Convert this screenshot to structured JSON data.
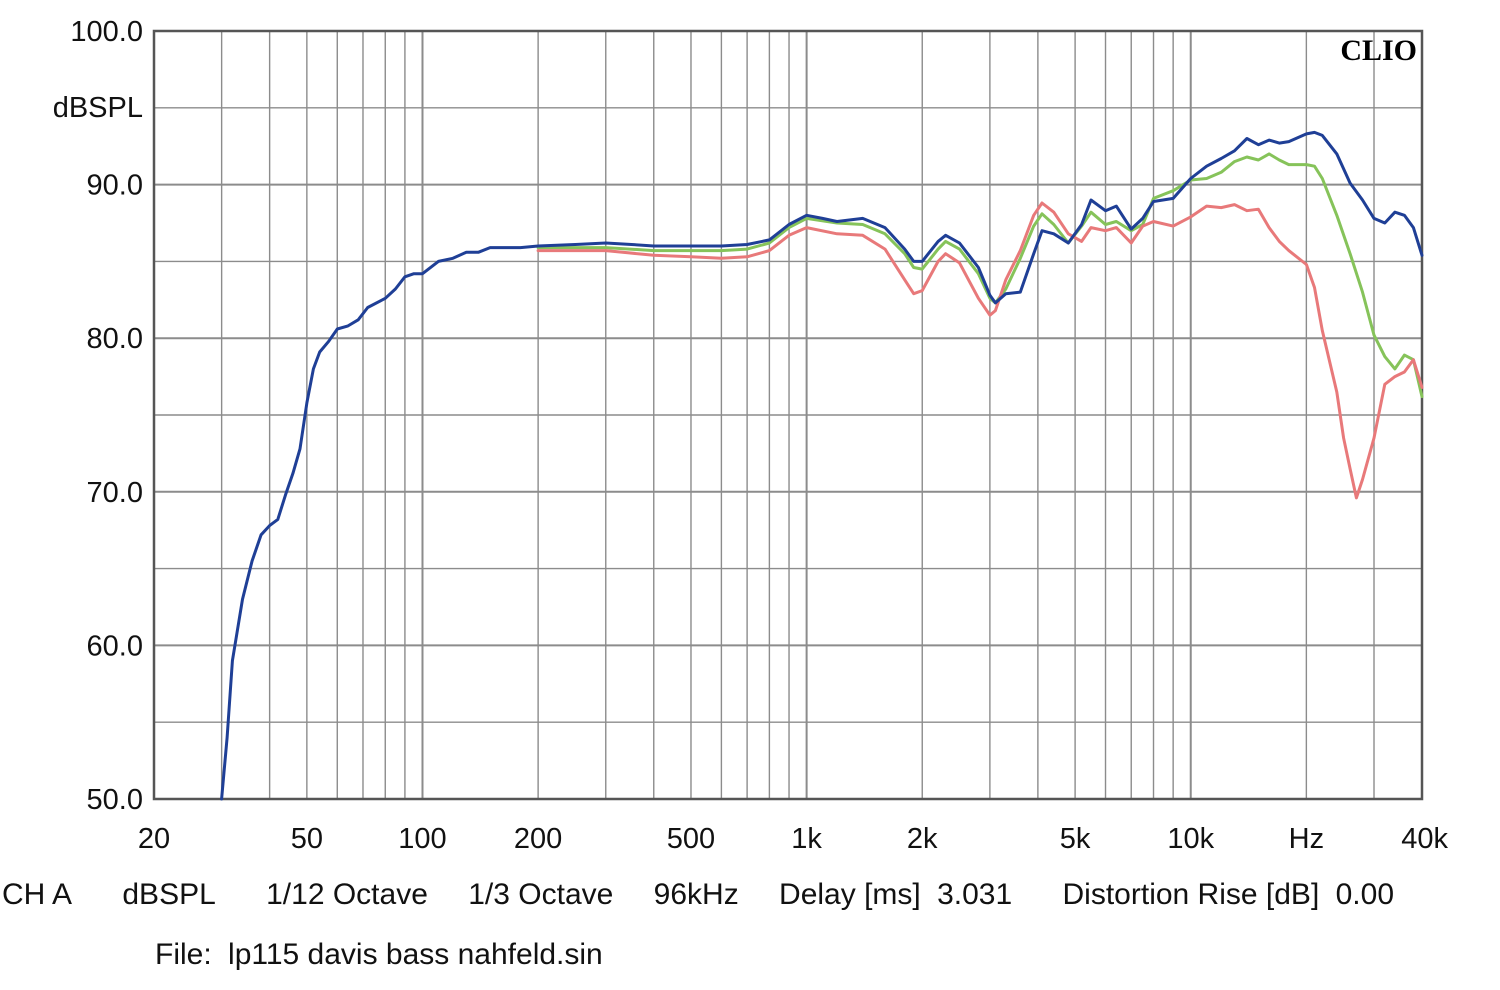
{
  "footer": {
    "channel": "CH A",
    "unit": "dBSPL",
    "resolution": "1/12 Octave",
    "smoothing": "1/3 Octave",
    "sample_rate": "96kHz",
    "delay_label": "Delay [ms]",
    "delay_value": "3.031",
    "distortion_label": "Distortion Rise [dB]",
    "distortion_value": "0.00",
    "file_label": "File:",
    "file_name": "lp115 davis bass nahfeld.sin"
  },
  "colors": {
    "background": "#ffffff",
    "grid": "#8c8c8c",
    "frame": "#555555",
    "blue": "#1f3f96",
    "green": "#86c35a",
    "red": "#e8797a"
  },
  "chart_data": {
    "type": "line",
    "brand": "CLIO",
    "ylabel": "dBSPL",
    "xlabel": "Hz",
    "xscale": "log",
    "xlim": [
      20,
      40000
    ],
    "ylim": [
      50,
      100
    ],
    "y_ticks": [
      {
        "value": 100,
        "label": "100.0"
      },
      {
        "value": 90,
        "label": "90.0"
      },
      {
        "value": 80,
        "label": "80.0"
      },
      {
        "value": 70,
        "label": "70.0"
      },
      {
        "value": 60,
        "label": "60.0"
      },
      {
        "value": 50,
        "label": "50.0"
      }
    ],
    "x_ticks": [
      {
        "value": 20,
        "label": "20"
      },
      {
        "value": 50,
        "label": "50"
      },
      {
        "value": 100,
        "label": "100"
      },
      {
        "value": 200,
        "label": "200"
      },
      {
        "value": 500,
        "label": "500"
      },
      {
        "value": 1000,
        "label": "1k"
      },
      {
        "value": 2000,
        "label": "2k"
      },
      {
        "value": 5000,
        "label": "5k"
      },
      {
        "value": 10000,
        "label": "10k"
      },
      {
        "value": 20000,
        "label": "Hz"
      },
      {
        "value": 40000,
        "label": "40k"
      }
    ],
    "grid": true,
    "series": [
      {
        "color": "#86c35a",
        "points": [
          [
            200,
            85.9
          ],
          [
            300,
            85.9
          ],
          [
            400,
            85.7
          ],
          [
            500,
            85.7
          ],
          [
            600,
            85.7
          ],
          [
            700,
            85.8
          ],
          [
            800,
            86.2
          ],
          [
            900,
            87.2
          ],
          [
            1000,
            87.8
          ],
          [
            1200,
            87.5
          ],
          [
            1400,
            87.4
          ],
          [
            1600,
            86.8
          ],
          [
            1800,
            85.5
          ],
          [
            1900,
            84.6
          ],
          [
            2000,
            84.5
          ],
          [
            2200,
            85.8
          ],
          [
            2300,
            86.3
          ],
          [
            2500,
            85.8
          ],
          [
            2800,
            84.2
          ],
          [
            3000,
            82.6
          ],
          [
            3100,
            82.3
          ],
          [
            3300,
            83.2
          ],
          [
            3600,
            85.2
          ],
          [
            3900,
            87.3
          ],
          [
            4100,
            88.1
          ],
          [
            4400,
            87.4
          ],
          [
            4800,
            86.2
          ],
          [
            5200,
            87.3
          ],
          [
            5500,
            88.2
          ],
          [
            6000,
            87.4
          ],
          [
            6400,
            87.6
          ],
          [
            7000,
            87.0
          ],
          [
            7500,
            87.4
          ],
          [
            8000,
            89.1
          ],
          [
            9000,
            89.6
          ],
          [
            10000,
            90.3
          ],
          [
            11000,
            90.4
          ],
          [
            12000,
            90.8
          ],
          [
            13000,
            91.5
          ],
          [
            14000,
            91.8
          ],
          [
            15000,
            91.6
          ],
          [
            16000,
            92.0
          ],
          [
            17000,
            91.6
          ],
          [
            18000,
            91.3
          ],
          [
            20000,
            91.3
          ],
          [
            21000,
            91.2
          ],
          [
            22000,
            90.4
          ],
          [
            24000,
            88.0
          ],
          [
            26000,
            85.5
          ],
          [
            28000,
            83.0
          ],
          [
            30000,
            80.2
          ],
          [
            32000,
            78.8
          ],
          [
            34000,
            78.0
          ],
          [
            36000,
            78.9
          ],
          [
            38000,
            78.6
          ],
          [
            40000,
            76.2
          ]
        ]
      },
      {
        "color": "#e8797a",
        "points": [
          [
            200,
            85.7
          ],
          [
            300,
            85.7
          ],
          [
            400,
            85.4
          ],
          [
            500,
            85.3
          ],
          [
            600,
            85.2
          ],
          [
            700,
            85.3
          ],
          [
            800,
            85.7
          ],
          [
            900,
            86.7
          ],
          [
            1000,
            87.2
          ],
          [
            1200,
            86.8
          ],
          [
            1400,
            86.7
          ],
          [
            1600,
            85.8
          ],
          [
            1800,
            83.8
          ],
          [
            1900,
            82.9
          ],
          [
            2000,
            83.1
          ],
          [
            2200,
            85.0
          ],
          [
            2300,
            85.5
          ],
          [
            2500,
            84.9
          ],
          [
            2800,
            82.6
          ],
          [
            3000,
            81.5
          ],
          [
            3100,
            81.8
          ],
          [
            3300,
            83.8
          ],
          [
            3600,
            85.7
          ],
          [
            3900,
            88.0
          ],
          [
            4100,
            88.8
          ],
          [
            4400,
            88.2
          ],
          [
            4800,
            86.8
          ],
          [
            5200,
            86.3
          ],
          [
            5500,
            87.2
          ],
          [
            6000,
            87.0
          ],
          [
            6400,
            87.2
          ],
          [
            7000,
            86.2
          ],
          [
            7500,
            87.3
          ],
          [
            8000,
            87.6
          ],
          [
            9000,
            87.3
          ],
          [
            10000,
            87.9
          ],
          [
            11000,
            88.6
          ],
          [
            12000,
            88.5
          ],
          [
            13000,
            88.7
          ],
          [
            14000,
            88.3
          ],
          [
            15000,
            88.4
          ],
          [
            16000,
            87.2
          ],
          [
            17000,
            86.3
          ],
          [
            18000,
            85.7
          ],
          [
            20000,
            84.8
          ],
          [
            21000,
            83.3
          ],
          [
            22000,
            80.5
          ],
          [
            24000,
            76.5
          ],
          [
            25000,
            73.5
          ],
          [
            26000,
            71.5
          ],
          [
            27000,
            69.6
          ],
          [
            28000,
            70.8
          ],
          [
            30000,
            73.5
          ],
          [
            32000,
            77.0
          ],
          [
            34000,
            77.5
          ],
          [
            36000,
            77.8
          ],
          [
            38000,
            78.6
          ],
          [
            40000,
            76.8
          ]
        ]
      },
      {
        "color": "#1f3f96",
        "points": [
          [
            30,
            50.0
          ],
          [
            31,
            54.0
          ],
          [
            32,
            59.0
          ],
          [
            34,
            63.0
          ],
          [
            36,
            65.5
          ],
          [
            38,
            67.2
          ],
          [
            40,
            67.8
          ],
          [
            42,
            68.2
          ],
          [
            44,
            69.8
          ],
          [
            46,
            71.2
          ],
          [
            48,
            72.8
          ],
          [
            50,
            75.8
          ],
          [
            52,
            78.0
          ],
          [
            54,
            79.1
          ],
          [
            57,
            79.8
          ],
          [
            60,
            80.6
          ],
          [
            64,
            80.8
          ],
          [
            68,
            81.2
          ],
          [
            72,
            82.0
          ],
          [
            80,
            82.6
          ],
          [
            85,
            83.2
          ],
          [
            90,
            84.0
          ],
          [
            95,
            84.2
          ],
          [
            100,
            84.2
          ],
          [
            110,
            85.0
          ],
          [
            120,
            85.2
          ],
          [
            130,
            85.6
          ],
          [
            140,
            85.6
          ],
          [
            150,
            85.9
          ],
          [
            160,
            85.9
          ],
          [
            180,
            85.9
          ],
          [
            200,
            86.0
          ],
          [
            250,
            86.1
          ],
          [
            300,
            86.2
          ],
          [
            350,
            86.1
          ],
          [
            400,
            86.0
          ],
          [
            500,
            86.0
          ],
          [
            600,
            86.0
          ],
          [
            700,
            86.1
          ],
          [
            800,
            86.4
          ],
          [
            900,
            87.4
          ],
          [
            1000,
            88.0
          ],
          [
            1100,
            87.8
          ],
          [
            1200,
            87.6
          ],
          [
            1400,
            87.8
          ],
          [
            1600,
            87.2
          ],
          [
            1800,
            85.8
          ],
          [
            1900,
            85.0
          ],
          [
            2000,
            85.0
          ],
          [
            2200,
            86.3
          ],
          [
            2300,
            86.7
          ],
          [
            2500,
            86.2
          ],
          [
            2800,
            84.6
          ],
          [
            3000,
            82.8
          ],
          [
            3100,
            82.3
          ],
          [
            3300,
            82.9
          ],
          [
            3600,
            83.0
          ],
          [
            3900,
            85.5
          ],
          [
            4100,
            87.0
          ],
          [
            4400,
            86.8
          ],
          [
            4800,
            86.2
          ],
          [
            5200,
            87.4
          ],
          [
            5500,
            89.0
          ],
          [
            6000,
            88.3
          ],
          [
            6400,
            88.6
          ],
          [
            7000,
            87.1
          ],
          [
            7500,
            87.8
          ],
          [
            8000,
            88.9
          ],
          [
            9000,
            89.1
          ],
          [
            10000,
            90.4
          ],
          [
            11000,
            91.2
          ],
          [
            12000,
            91.7
          ],
          [
            13000,
            92.2
          ],
          [
            14000,
            93.0
          ],
          [
            15000,
            92.6
          ],
          [
            16000,
            92.9
          ],
          [
            17000,
            92.7
          ],
          [
            18000,
            92.8
          ],
          [
            20000,
            93.3
          ],
          [
            21000,
            93.4
          ],
          [
            22000,
            93.2
          ],
          [
            24000,
            92.0
          ],
          [
            26000,
            90.1
          ],
          [
            28000,
            89.0
          ],
          [
            30000,
            87.8
          ],
          [
            32000,
            87.5
          ],
          [
            34000,
            88.2
          ],
          [
            36000,
            88.0
          ],
          [
            38000,
            87.2
          ],
          [
            40000,
            85.4
          ]
        ]
      }
    ]
  }
}
